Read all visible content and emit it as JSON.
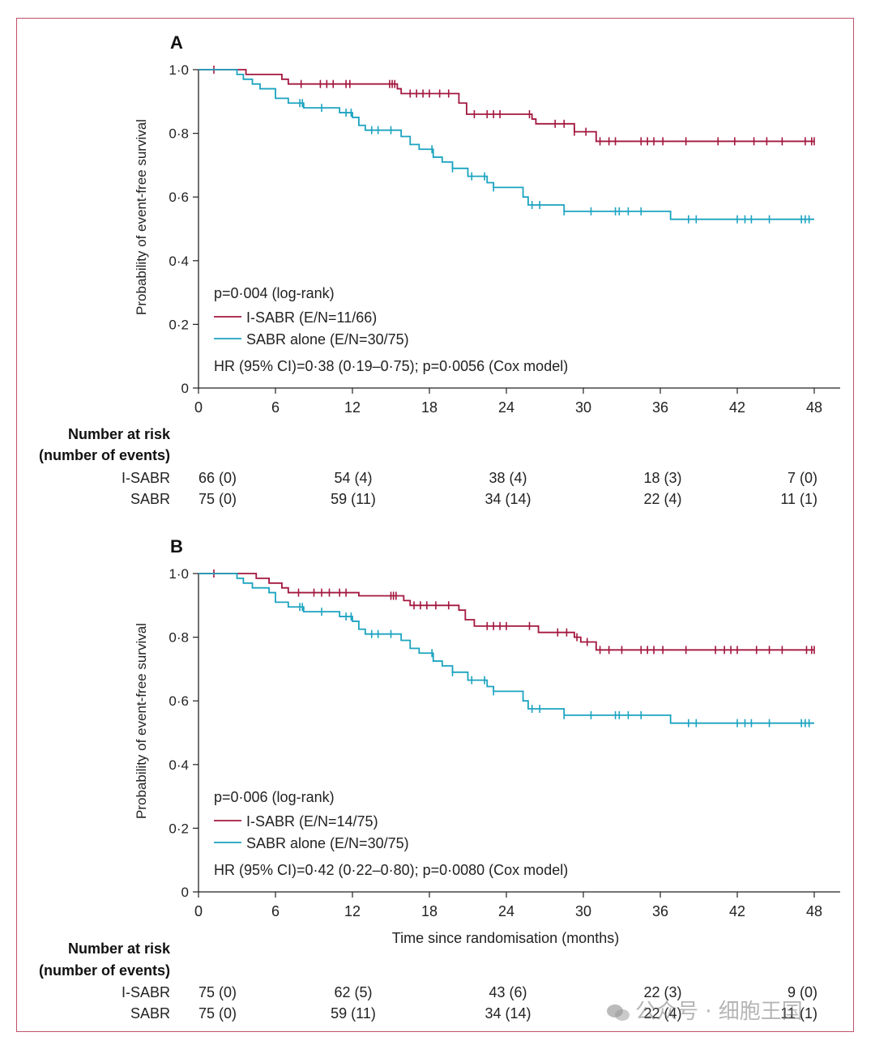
{
  "colors": {
    "isabr": "#a3173e",
    "sabr": "#1ba3c0",
    "frame": "#c0506a"
  },
  "chart_data": [
    {
      "type": "line",
      "panel_label": "A",
      "ylabel": "Probability of event-free survival",
      "xlabel": "",
      "xlim": [
        0,
        48
      ],
      "ylim": [
        0,
        1
      ],
      "xticks": [
        "0",
        "6",
        "12",
        "18",
        "24",
        "30",
        "36",
        "42",
        "48"
      ],
      "yticks": [
        "0",
        "0·2",
        "0·4",
        "0·6",
        "0·8",
        "1·0"
      ],
      "legend": {
        "stat": "p=0·004 (log-rank)",
        "hr": "HR (95% CI)=0·38 (0·19–0·75); p=0·0056 (Cox model)"
      },
      "series": [
        {
          "name": "I-SABR (E/N=11/66)",
          "color": "#a3173e",
          "x": [
            0,
            2.5,
            3.7,
            6.5,
            7,
            15.5,
            15.8,
            20.3,
            20.9,
            26,
            26.3,
            29.3,
            31,
            48
          ],
          "y": [
            1.0,
            1.0,
            0.985,
            0.97,
            0.955,
            0.94,
            0.925,
            0.895,
            0.86,
            0.845,
            0.83,
            0.805,
            0.775,
            0.775
          ],
          "censor_x": [
            1.2,
            8,
            9.5,
            10,
            10.5,
            11.5,
            11.8,
            14.9,
            15.1,
            15.3,
            16.5,
            17,
            17.5,
            18,
            18.8,
            19.5,
            21.5,
            22.5,
            23,
            23.5,
            25.8,
            27.8,
            28.5,
            29.3,
            30.2,
            31.3,
            32,
            32.5,
            34.5,
            35,
            35.5,
            36.2,
            38,
            40.5,
            41.8,
            43.3,
            44.3,
            45.5,
            47.3,
            47.8,
            48
          ]
        },
        {
          "name": "SABR alone (E/N=30/75)",
          "color": "#1ba3c0",
          "x": [
            0,
            2.7,
            3,
            3.5,
            4.2,
            4.8,
            6,
            7,
            8.2,
            11,
            12,
            12.5,
            13,
            15.8,
            16.5,
            17.2,
            18.3,
            19,
            19.8,
            21,
            22.5,
            23,
            25.3,
            25.7,
            28.5,
            36.8,
            48
          ],
          "y": [
            1.0,
            1.0,
            0.985,
            0.97,
            0.955,
            0.94,
            0.91,
            0.895,
            0.88,
            0.865,
            0.85,
            0.825,
            0.81,
            0.79,
            0.765,
            0.75,
            0.725,
            0.71,
            0.69,
            0.665,
            0.645,
            0.63,
            0.6,
            0.575,
            0.555,
            0.53,
            0.53
          ],
          "censor_x": [
            7.9,
            8.1,
            9.6,
            11.5,
            11.9,
            13.5,
            14,
            15,
            18.2,
            19.8,
            21.3,
            22.3,
            23,
            26,
            26.6,
            28.5,
            30.6,
            32.5,
            32.8,
            33.5,
            34.5,
            38.2,
            38.8,
            42,
            42.6,
            43.1,
            44.5,
            47,
            47.3,
            47.6
          ]
        }
      ],
      "risk_table": {
        "title_1": "Number at risk",
        "title_2": "(number of events)",
        "rows": [
          {
            "label": "I-SABR",
            "values": [
              "66 (0)",
              "54 (4)",
              "38 (4)",
              "18 (3)",
              "7 (0)"
            ]
          },
          {
            "label": "SABR",
            "values": [
              "75 (0)",
              "59 (11)",
              "34 (14)",
              "22 (4)",
              "11 (1)"
            ]
          }
        ]
      }
    },
    {
      "type": "line",
      "panel_label": "B",
      "ylabel": "Probability of event-free survival",
      "xlabel": "Time since randomisation (months)",
      "xlim": [
        0,
        48
      ],
      "ylim": [
        0,
        1
      ],
      "xticks": [
        "0",
        "6",
        "12",
        "18",
        "24",
        "30",
        "36",
        "42",
        "48"
      ],
      "yticks": [
        "0",
        "0·2",
        "0·4",
        "0·6",
        "0·8",
        "1·0"
      ],
      "legend": {
        "stat": "p=0·006 (log-rank)",
        "hr": "HR (95% CI)=0·42 (0·22–0·80); p=0·0080 (Cox model)"
      },
      "series": [
        {
          "name": "I-SABR (E/N=14/75)",
          "color": "#a3173e",
          "x": [
            0,
            3,
            4.5,
            5.5,
            6.5,
            7,
            12.5,
            16,
            16.5,
            20.3,
            20.8,
            21.5,
            26.5,
            29.3,
            29.8,
            31,
            48
          ],
          "y": [
            1.0,
            1.0,
            0.985,
            0.97,
            0.955,
            0.94,
            0.93,
            0.915,
            0.9,
            0.885,
            0.855,
            0.835,
            0.815,
            0.8,
            0.785,
            0.76,
            0.76
          ],
          "censor_x": [
            1.2,
            7.8,
            9,
            9.6,
            10.2,
            11,
            11.5,
            15,
            15.2,
            15.4,
            16.8,
            17.3,
            17.8,
            18.5,
            19.5,
            22.5,
            23,
            23.5,
            24,
            25.8,
            28,
            28.7,
            29.5,
            30.3,
            31.3,
            32,
            33,
            34.5,
            35,
            35.5,
            36.2,
            38,
            40.3,
            41,
            41.5,
            42,
            43.5,
            44.5,
            45.5,
            47.4,
            47.8,
            48
          ]
        },
        {
          "name": "SABR alone (E/N=30/75)",
          "color": "#1ba3c0",
          "x": [
            0,
            2.7,
            3,
            3.5,
            4.2,
            5.5,
            6,
            7,
            8.2,
            11,
            12,
            12.5,
            13,
            15.8,
            16.5,
            17.2,
            18.3,
            19,
            19.8,
            21,
            22.5,
            23,
            25.3,
            25.7,
            28.5,
            36.8,
            48
          ],
          "y": [
            1.0,
            1.0,
            0.985,
            0.97,
            0.955,
            0.94,
            0.91,
            0.895,
            0.88,
            0.865,
            0.85,
            0.825,
            0.81,
            0.79,
            0.765,
            0.75,
            0.725,
            0.71,
            0.69,
            0.665,
            0.645,
            0.63,
            0.6,
            0.575,
            0.555,
            0.53,
            0.53
          ],
          "censor_x": [
            7.9,
            8.1,
            9.6,
            11.5,
            11.9,
            13.5,
            14,
            15,
            18.2,
            19.8,
            21.3,
            22.3,
            23,
            26,
            26.6,
            28.5,
            30.6,
            32.5,
            32.8,
            33.5,
            34.5,
            38.2,
            38.8,
            42,
            42.6,
            43.1,
            44.5,
            47,
            47.3,
            47.6
          ]
        }
      ],
      "risk_table": {
        "title_1": "Number at risk",
        "title_2": "(number of events)",
        "rows": [
          {
            "label": "I-SABR",
            "values": [
              "75 (0)",
              "62 (5)",
              "43 (6)",
              "22 (3)",
              "9 (0)"
            ]
          },
          {
            "label": "SABR",
            "values": [
              "75 (0)",
              "59 (11)",
              "34 (14)",
              "22 (4)",
              "11 (1)"
            ]
          }
        ]
      }
    }
  ],
  "watermark": {
    "text": "公众号 · 细胞王国"
  }
}
